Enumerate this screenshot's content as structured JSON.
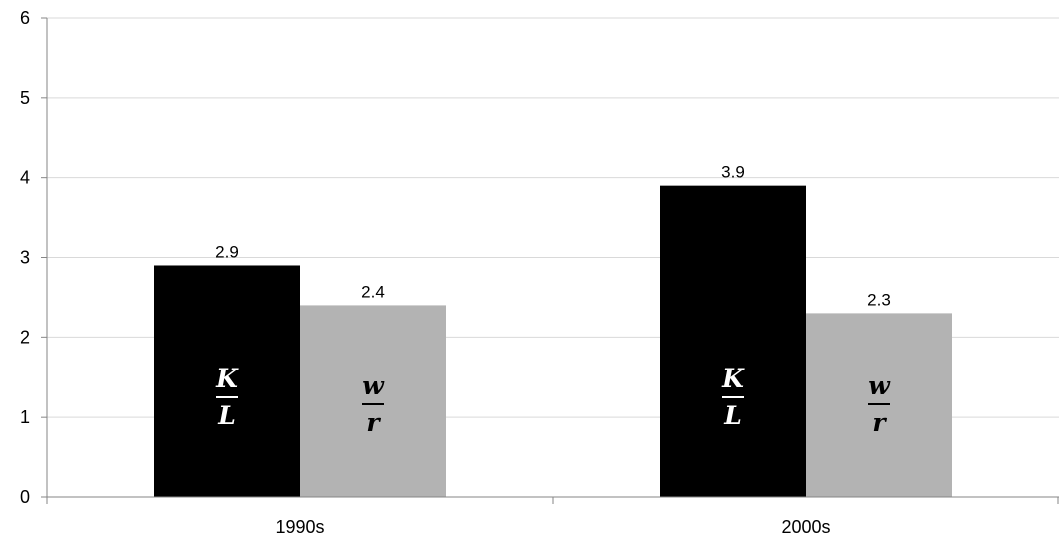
{
  "chart_data": {
    "type": "bar",
    "categories": [
      "1990s",
      "2000s"
    ],
    "series": [
      {
        "values": [
          2.9,
          3.9
        ],
        "value_labels": [
          "2.9",
          "3.9"
        ],
        "inbar_fraction": {
          "numerator": "K",
          "denominator": "L"
        },
        "color": "#000000",
        "text_color": "#ffffff"
      },
      {
        "values": [
          2.4,
          2.3
        ],
        "value_labels": [
          "2.4",
          "2.3"
        ],
        "inbar_fraction": {
          "numerator": "w",
          "denominator": "r"
        },
        "color": "#b3b3b3",
        "text_color": "#000000"
      }
    ],
    "ylim": [
      0,
      6
    ],
    "yticks": [
      "0",
      "1",
      "2",
      "3",
      "4",
      "5",
      "6"
    ],
    "grid": true,
    "gridColor": "#d9d9d9",
    "axisColor": "#868686"
  }
}
